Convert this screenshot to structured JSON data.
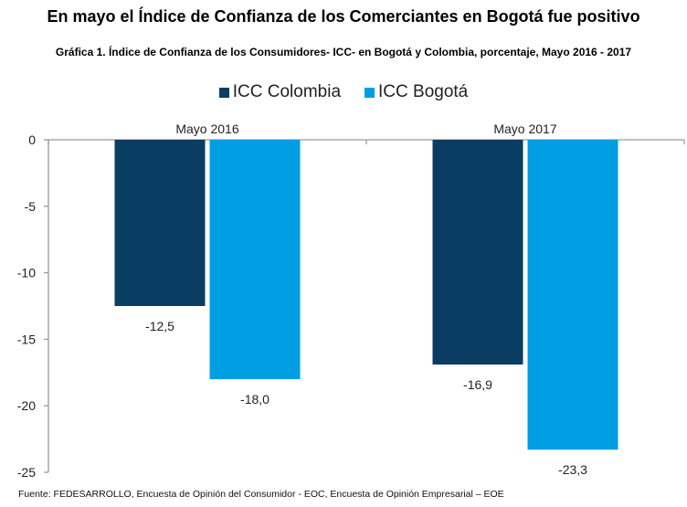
{
  "header": {
    "title": "En mayo el Índice de Confianza de los Comerciantes en Bogotá fue positivo",
    "subtitle": "Gráfica 1.  Índice de Confianza de los Consumidores- ICC- en Bogotá y Colombia, porcentaje, Mayo 2016 - 2017"
  },
  "footer": {
    "source": "Fuente: FEDESARROLLO, Encuesta de Opinión del Consumidor - EOC, Encuesta de Opinión Empresarial – EOE"
  },
  "chart_data": {
    "type": "bar",
    "title": "Gráfica 1.  Índice de Confianza de los Consumidores- ICC- en Bogotá y Colombia, porcentaje, Mayo 2016 - 2017",
    "categories": [
      "Mayo 2016",
      "Mayo 2017"
    ],
    "series": [
      {
        "name": "ICC Colombia",
        "color": "#0a3d62",
        "values": [
          -12.5,
          -16.9
        ],
        "labels": [
          "-12,5",
          "-16,9"
        ]
      },
      {
        "name": "ICC Bogotá",
        "color": "#009fe3",
        "values": [
          -18.0,
          -23.3
        ],
        "labels": [
          "-18,0",
          "-23,3"
        ]
      }
    ],
    "yticks": [
      0,
      -5,
      -10,
      -15,
      -20,
      -25
    ],
    "ytick_labels": [
      "0",
      "-5",
      "-10",
      "-15",
      "-20",
      "-25"
    ],
    "ylim": [
      -25,
      0
    ],
    "xlabel": "",
    "ylabel": "",
    "legend_position": "top-center",
    "category_label_position": "top",
    "grid": false
  }
}
